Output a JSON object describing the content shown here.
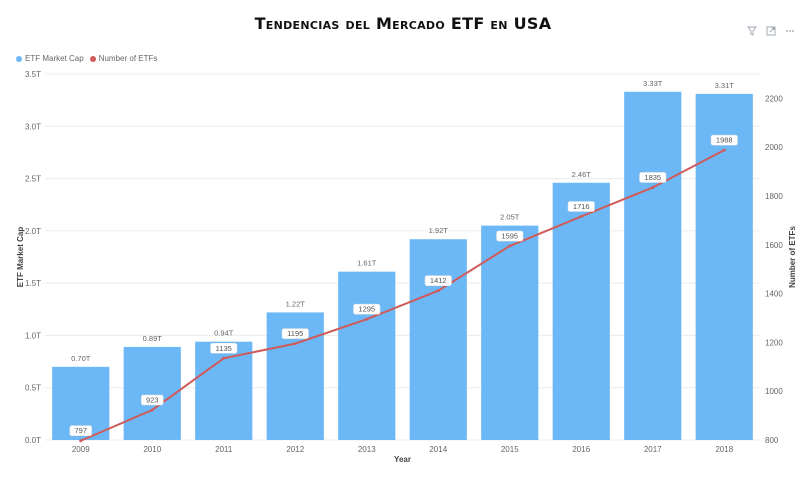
{
  "title": "Tendencias del Mercado ETF en USA",
  "toolbar": {
    "icons": [
      "filter-icon",
      "focus-mode-icon",
      "more-options-icon"
    ]
  },
  "legend": {
    "items": [
      {
        "label": "ETF Market Cap",
        "color": "#6cb8f6"
      },
      {
        "label": "Number of ETFs",
        "color": "#d05a5a"
      }
    ]
  },
  "chart_data": {
    "type": "bar",
    "categories": [
      "2009",
      "2010",
      "2011",
      "2012",
      "2013",
      "2014",
      "2015",
      "2016",
      "2017",
      "2018"
    ],
    "series": [
      {
        "name": "ETF Market Cap",
        "type": "bar",
        "axis": "left",
        "values": [
          0.7,
          0.89,
          0.94,
          1.22,
          1.61,
          1.92,
          2.05,
          2.46,
          3.33,
          3.31
        ],
        "labels": [
          "0.70T",
          "0.89T",
          "0.94T",
          "1.22T",
          "1.61T",
          "1.92T",
          "2.05T",
          "2.46T",
          "3.33T",
          "3.31T"
        ],
        "color": "#6cb8f6"
      },
      {
        "name": "Number of ETFs",
        "type": "line",
        "axis": "right",
        "values": [
          797,
          923,
          1135,
          1195,
          1295,
          1412,
          1595,
          1716,
          1835,
          1988
        ],
        "labels": [
          "797",
          "923",
          "1135",
          "1195",
          "1295",
          "1412",
          "1595",
          "1716",
          "1835",
          "1988"
        ],
        "color": "#d05a5a"
      }
    ],
    "xlabel": "Year",
    "ylabel": "ETF Market Cap",
    "y2label": "Number of ETFs",
    "ylim": [
      0,
      3.5
    ],
    "y2lim": [
      800,
      2300
    ],
    "yticks": [
      "0.0T",
      "0.5T",
      "1.0T",
      "1.5T",
      "2.0T",
      "2.5T",
      "3.0T",
      "3.5T"
    ],
    "y2ticks": [
      "800",
      "1000",
      "1200",
      "1400",
      "1600",
      "1800",
      "2000",
      "2200"
    ],
    "grid": true,
    "legend_position": "top-left"
  }
}
